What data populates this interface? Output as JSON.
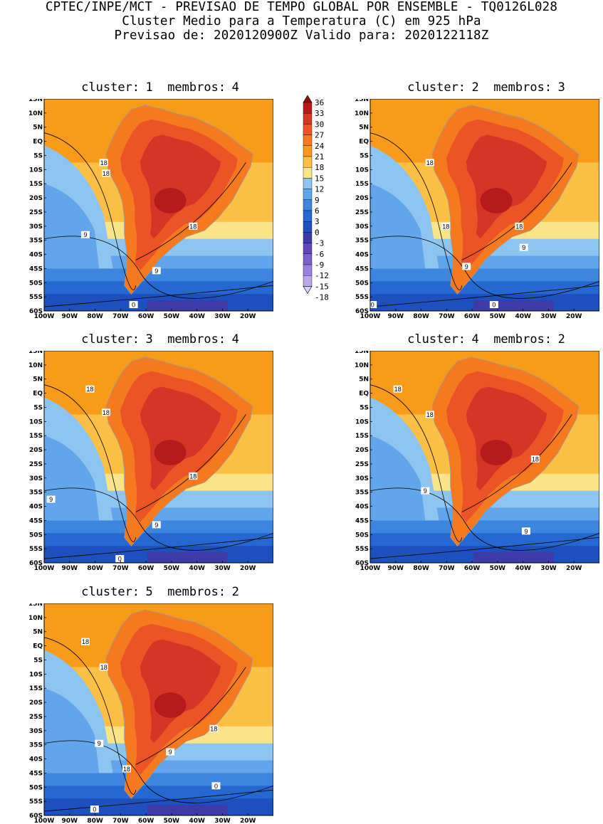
{
  "header": {
    "line1": "CPTEC/INPE/MCT - PREVISAO DE TEMPO GLOBAL POR ENSEMBLE - TQ0126L028",
    "line2": "Cluster Medio para a Temperatura (C) em 925 hPa",
    "line3": "Previsao de: 2020120900Z   Valido para: 2020122118Z"
  },
  "panels": [
    {
      "cluster_label": "cluster:",
      "cluster": "1",
      "members_label": "membros:",
      "members": "4",
      "contour_labels": [
        "18",
        "18",
        "18",
        "9",
        "9",
        "0"
      ]
    },
    {
      "cluster_label": "cluster:",
      "cluster": "2",
      "members_label": "membros:",
      "members": "3",
      "contour_labels": [
        "18",
        "18",
        "18",
        "9",
        "9",
        "0",
        "0"
      ]
    },
    {
      "cluster_label": "cluster:",
      "cluster": "3",
      "members_label": "membros:",
      "members": "4",
      "contour_labels": [
        "18",
        "18",
        "18",
        "9",
        "9",
        "0"
      ]
    },
    {
      "cluster_label": "cluster:",
      "cluster": "4",
      "members_label": "membros:",
      "members": "2",
      "contour_labels": [
        "18",
        "18",
        "18",
        "9",
        "9"
      ]
    },
    {
      "cluster_label": "cluster:",
      "cluster": "5",
      "members_label": "membros:",
      "members": "2",
      "contour_labels": [
        "18",
        "18",
        "18",
        "9",
        "9",
        "18",
        "0",
        "0"
      ]
    }
  ],
  "axes": {
    "lat_ticks": [
      "15N",
      "10N",
      "5N",
      "EQ",
      "5S",
      "10S",
      "15S",
      "20S",
      "25S",
      "30S",
      "35S",
      "40S",
      "45S",
      "50S",
      "55S",
      "60S"
    ],
    "lon_ticks": [
      "100W",
      "90W",
      "80W",
      "70W",
      "60W",
      "50W",
      "40W",
      "30W",
      "20W"
    ]
  },
  "colorbar": {
    "labels": [
      "36",
      "33",
      "30",
      "27",
      "24",
      "21",
      "18",
      "15",
      "12",
      "9",
      "6",
      "3",
      "0",
      "-3",
      "-6",
      "-9",
      "-12",
      "-15",
      "-18"
    ],
    "colors": [
      "#8b1010",
      "#b51b1b",
      "#d43527",
      "#ea5426",
      "#f57a1f",
      "#f89b1a",
      "#fbbf45",
      "#fbe389",
      "#8ec4f0",
      "#63a5ea",
      "#3d86e0",
      "#2668cf",
      "#1d50bd",
      "#3e3aa8",
      "#5f48bc",
      "#7d5fd0",
      "#9c80de",
      "#bda5ea",
      "#ddd0f5"
    ]
  }
}
